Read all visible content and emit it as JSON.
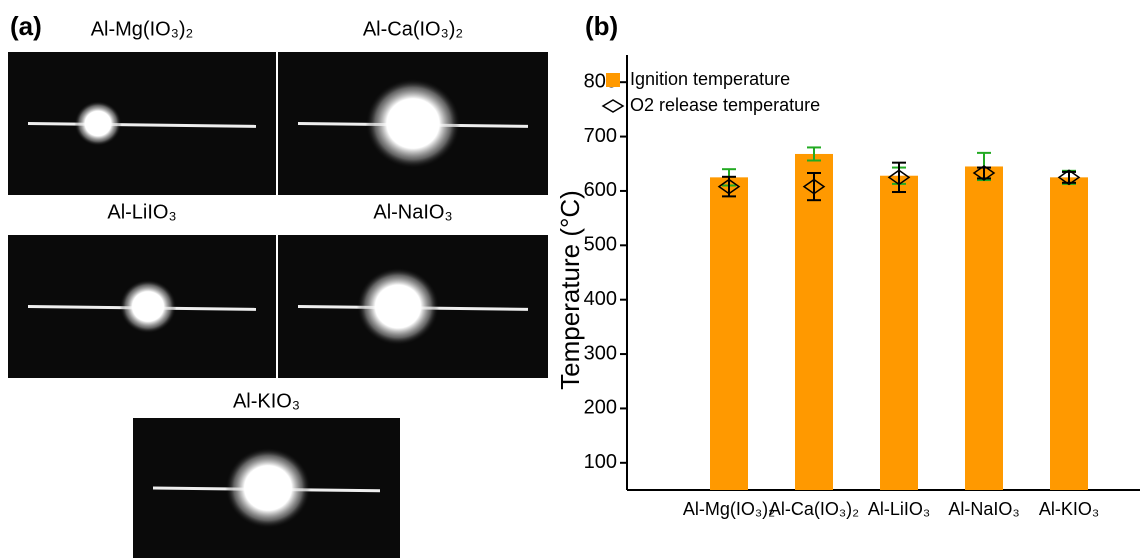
{
  "panel_a": {
    "label": "(a)",
    "images": [
      {
        "label": "Al-Mg(IO₃)₂"
      },
      {
        "label": "Al-Ca(IO₃)₂"
      },
      {
        "label": "Al-LiIO₃"
      },
      {
        "label": "Al-NaIO₃"
      },
      {
        "label": "Al-KIO₃"
      }
    ]
  },
  "chart_data": {
    "type": "bar",
    "panel_label": "(b)",
    "y_label": "Temperature (°C)",
    "categories": [
      "Al-Mg(IO₃)₂",
      "Al-Ca(IO₃)₂",
      "Al-LiIO₃",
      "Al-NaIO₃",
      "Al-KIO₃"
    ],
    "series": [
      {
        "name": "Ignition temperature",
        "color": "#ff9900",
        "marker": "bar",
        "error_color": "#22aa22",
        "values": [
          625,
          668,
          628,
          645,
          625
        ],
        "errors": [
          15,
          12,
          15,
          25,
          12
        ]
      },
      {
        "name": "O2 release temperature",
        "color": "#000000",
        "marker": "diamond",
        "error_color": "#000000",
        "values": [
          608,
          608,
          625,
          633,
          625
        ],
        "errors": [
          18,
          25,
          27,
          10,
          10
        ]
      }
    ],
    "ylim": [
      50,
      850
    ],
    "yticks": [
      100,
      200,
      300,
      400,
      500,
      600,
      700,
      800
    ],
    "legend": "upper left",
    "grid": false
  }
}
